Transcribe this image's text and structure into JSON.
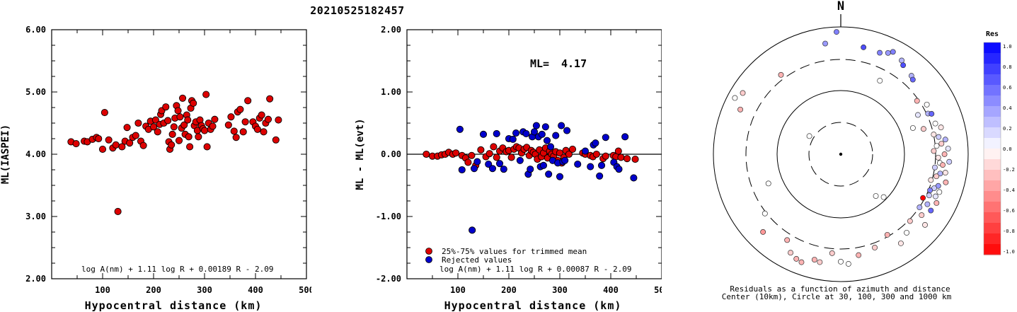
{
  "title": "20210525182457",
  "colors": {
    "red": "#dd0000",
    "blue": "#0000cc",
    "frame": "#000000"
  },
  "chart_data": [
    {
      "type": "scatter",
      "ylabel": "ML(IASPEI)",
      "xlabel": "Hypocentral distance (km)",
      "formula": "log A(nm) + 1.11 log R + 0.00189 R - 2.09",
      "xlim": [
        0,
        500
      ],
      "ylim": [
        2,
        6
      ],
      "x_ticks": [
        "100",
        "200",
        "300",
        "400",
        "500"
      ],
      "y_ticks": [
        "2.00",
        "3.00",
        "4.00",
        "5.00",
        "6.00"
      ],
      "points": [
        [
          38,
          4.2
        ],
        [
          48,
          4.17
        ],
        [
          64,
          4.21
        ],
        [
          70,
          4.2
        ],
        [
          80,
          4.24
        ],
        [
          88,
          4.27
        ],
        [
          92,
          4.25
        ],
        [
          100,
          4.08
        ],
        [
          104,
          4.67
        ],
        [
          112,
          4.23
        ],
        [
          120,
          4.1
        ],
        [
          126,
          4.15
        ],
        [
          130,
          3.08
        ],
        [
          138,
          4.12
        ],
        [
          144,
          4.21
        ],
        [
          148,
          4.43
        ],
        [
          153,
          4.18
        ],
        [
          159,
          4.27
        ],
        [
          165,
          4.3
        ],
        [
          170,
          4.5
        ],
        [
          175,
          4.21
        ],
        [
          180,
          4.14
        ],
        [
          185,
          4.45
        ],
        [
          190,
          4.4
        ],
        [
          194,
          4.53
        ],
        [
          200,
          4.44
        ],
        [
          204,
          4.55
        ],
        [
          208,
          4.36
        ],
        [
          212,
          4.48
        ],
        [
          214,
          4.64
        ],
        [
          216,
          4.7
        ],
        [
          220,
          4.5
        ],
        [
          224,
          4.76
        ],
        [
          228,
          4.54
        ],
        [
          230,
          4.2
        ],
        [
          232,
          4.08
        ],
        [
          235,
          4.15
        ],
        [
          237,
          4.32
        ],
        [
          240,
          4.44
        ],
        [
          242,
          4.58
        ],
        [
          245,
          4.78
        ],
        [
          248,
          4.7
        ],
        [
          250,
          4.22
        ],
        [
          252,
          4.6
        ],
        [
          255,
          4.42
        ],
        [
          257,
          4.9
        ],
        [
          260,
          4.47
        ],
        [
          262,
          4.32
        ],
        [
          265,
          4.63
        ],
        [
          267,
          4.55
        ],
        [
          269,
          4.28
        ],
        [
          271,
          4.12
        ],
        [
          273,
          4.74
        ],
        [
          275,
          4.86
        ],
        [
          278,
          4.82
        ],
        [
          280,
          4.46
        ],
        [
          283,
          4.52
        ],
        [
          286,
          4.38
        ],
        [
          288,
          4.28
        ],
        [
          291,
          4.55
        ],
        [
          294,
          4.46
        ],
        [
          297,
          4.41
        ],
        [
          300,
          4.38
        ],
        [
          303,
          4.96
        ],
        [
          305,
          4.12
        ],
        [
          308,
          4.5
        ],
        [
          312,
          4.4
        ],
        [
          316,
          4.45
        ],
        [
          320,
          4.56
        ],
        [
          347,
          4.47
        ],
        [
          352,
          4.6
        ],
        [
          358,
          4.37
        ],
        [
          362,
          4.27
        ],
        [
          365,
          4.68
        ],
        [
          370,
          4.72
        ],
        [
          376,
          4.36
        ],
        [
          380,
          4.52
        ],
        [
          385,
          4.86
        ],
        [
          395,
          4.52
        ],
        [
          400,
          4.45
        ],
        [
          404,
          4.4
        ],
        [
          408,
          4.58
        ],
        [
          412,
          4.63
        ],
        [
          416,
          4.36
        ],
        [
          420,
          4.5
        ],
        [
          425,
          4.56
        ],
        [
          428,
          4.89
        ],
        [
          440,
          4.23
        ],
        [
          445,
          4.55
        ]
      ]
    },
    {
      "type": "scatter",
      "ylabel": "ML - ML(evt)",
      "xlabel": "Hypocentral distance (km)",
      "ml_label": "ML=",
      "ml_value": "4.17",
      "formula": "log A(nm) + 1.11 log R + 0.00087 R - 2.09",
      "legend": [
        "25%-75% values for trimmed mean",
        "Rejected values"
      ],
      "xlim": [
        0,
        500
      ],
      "ylim": [
        -2,
        2
      ],
      "x_ticks": [
        "100",
        "200",
        "300",
        "400",
        "500"
      ],
      "y_ticks": [
        "-2.00",
        "-1.00",
        "0.00",
        "1.00",
        "2.00"
      ],
      "red_points": [
        [
          38,
          0.0
        ],
        [
          50,
          -0.03
        ],
        [
          60,
          -0.03
        ],
        [
          68,
          -0.01
        ],
        [
          75,
          0.0
        ],
        [
          82,
          0.03
        ],
        [
          90,
          0.0
        ],
        [
          96,
          0.02
        ],
        [
          108,
          -0.02
        ],
        [
          115,
          -0.06
        ],
        [
          120,
          -0.13
        ],
        [
          127,
          -0.02
        ],
        [
          135,
          -0.18
        ],
        [
          145,
          0.07
        ],
        [
          155,
          -0.04
        ],
        [
          162,
          0.01
        ],
        [
          170,
          0.12
        ],
        [
          176,
          -0.05
        ],
        [
          182,
          0.05
        ],
        [
          188,
          0.1
        ],
        [
          195,
          0.04
        ],
        [
          200,
          0.06
        ],
        [
          205,
          -0.05
        ],
        [
          210,
          0.08
        ],
        [
          215,
          0.12
        ],
        [
          220,
          0.1
        ],
        [
          225,
          0.02
        ],
        [
          230,
          0.08
        ],
        [
          235,
          0.11
        ],
        [
          240,
          -0.02
        ],
        [
          244,
          0.06
        ],
        [
          248,
          0.03
        ],
        [
          252,
          0.0
        ],
        [
          256,
          -0.08
        ],
        [
          260,
          0.07
        ],
        [
          264,
          -0.04
        ],
        [
          268,
          0.02
        ],
        [
          272,
          0.1
        ],
        [
          276,
          -0.06
        ],
        [
          280,
          0.05
        ],
        [
          284,
          0.0
        ],
        [
          288,
          -0.03
        ],
        [
          292,
          0.04
        ],
        [
          296,
          -0.1
        ],
        [
          300,
          0.02
        ],
        [
          304,
          -0.14
        ],
        [
          308,
          -0.05
        ],
        [
          312,
          0.06
        ],
        [
          318,
          0.0
        ],
        [
          325,
          0.08
        ],
        [
          345,
          0.02
        ],
        [
          350,
          0.0
        ],
        [
          360,
          -0.02
        ],
        [
          365,
          -0.04
        ],
        [
          372,
          0.0
        ],
        [
          385,
          -0.07
        ],
        [
          390,
          -0.03
        ],
        [
          405,
          -0.02
        ],
        [
          410,
          -0.04
        ],
        [
          415,
          0.05
        ],
        [
          420,
          -0.05
        ],
        [
          432,
          -0.07
        ],
        [
          448,
          -0.08
        ]
      ],
      "blue_points": [
        [
          104,
          0.4
        ],
        [
          108,
          -0.25
        ],
        [
          128,
          -1.22
        ],
        [
          132,
          -0.23
        ],
        [
          138,
          -0.12
        ],
        [
          150,
          0.32
        ],
        [
          160,
          -0.16
        ],
        [
          168,
          -0.23
        ],
        [
          176,
          0.33
        ],
        [
          182,
          -0.15
        ],
        [
          190,
          -0.24
        ],
        [
          200,
          0.25
        ],
        [
          208,
          0.24
        ],
        [
          214,
          0.34
        ],
        [
          222,
          -0.1
        ],
        [
          228,
          0.36
        ],
        [
          234,
          0.33
        ],
        [
          238,
          -0.32
        ],
        [
          242,
          -0.24
        ],
        [
          246,
          0.28
        ],
        [
          250,
          0.36
        ],
        [
          254,
          0.46
        ],
        [
          258,
          0.28
        ],
        [
          262,
          -0.2
        ],
        [
          265,
          0.32
        ],
        [
          268,
          -0.18
        ],
        [
          272,
          0.44
        ],
        [
          275,
          0.22
        ],
        [
          278,
          -0.32
        ],
        [
          282,
          0.12
        ],
        [
          286,
          -0.1
        ],
        [
          292,
          0.3
        ],
        [
          296,
          -0.14
        ],
        [
          300,
          -0.36
        ],
        [
          303,
          0.46
        ],
        [
          306,
          -0.12
        ],
        [
          310,
          -0.1
        ],
        [
          314,
          0.38
        ],
        [
          335,
          -0.16
        ],
        [
          350,
          0.05
        ],
        [
          360,
          -0.2
        ],
        [
          366,
          0.15
        ],
        [
          370,
          0.18
        ],
        [
          378,
          -0.35
        ],
        [
          382,
          -0.18
        ],
        [
          390,
          0.27
        ],
        [
          406,
          -0.13
        ],
        [
          412,
          -0.2
        ],
        [
          416,
          -0.24
        ],
        [
          428,
          0.28
        ],
        [
          445,
          -0.38
        ]
      ]
    },
    {
      "type": "polar-scatter",
      "north_label": "N",
      "caption_line1": "Residuals as a function of azimuth and distance",
      "caption_line2": "Center (10km), Circle at 30, 100, 300 and 1000 km",
      "colorbar_title": "Res",
      "colorbar_ticks": [
        "1.0",
        "0.8",
        "0.6",
        "0.4",
        "0.2",
        "0.0",
        "-0.2",
        "-0.4",
        "-0.6",
        "-0.8",
        "-1.0"
      ],
      "stations": [
        [
          12,
          1.71,
          0.7
        ],
        [
          21,
          1.7,
          0.5
        ],
        [
          25,
          1.75,
          0.4
        ],
        [
          27,
          1.8,
          0.5
        ],
        [
          33,
          1.75,
          0.3
        ],
        [
          35,
          1.7,
          0.7
        ],
        [
          42,
          1.65,
          0.3
        ],
        [
          44,
          1.62,
          0.6
        ],
        [
          28,
          1.3,
          0.0
        ],
        [
          55,
          1.45,
          -0.3
        ],
        [
          60,
          1.55,
          0.0
        ],
        [
          63,
          1.35,
          0.1
        ],
        [
          65,
          1.5,
          0.3
        ],
        [
          66,
          1.55,
          0.6
        ],
        [
          70,
          1.2,
          0.0
        ],
        [
          72,
          1.55,
          0.0
        ],
        [
          73,
          1.35,
          -0.2
        ],
        [
          75,
          1.62,
          -0.1
        ],
        [
          78,
          1.48,
          -0.1
        ],
        [
          80,
          1.55,
          0.2
        ],
        [
          82,
          1.65,
          0.3
        ],
        [
          84,
          1.58,
          -0.2
        ],
        [
          85,
          1.5,
          0.0
        ],
        [
          87,
          1.68,
          0.1
        ],
        [
          88,
          1.45,
          -0.2
        ],
        [
          90,
          1.62,
          -0.3
        ],
        [
          92,
          1.52,
          -0.1
        ],
        [
          94,
          1.7,
          0.2
        ],
        [
          95,
          1.55,
          0.0
        ],
        [
          96,
          1.6,
          -0.3
        ],
        [
          98,
          1.48,
          0.2
        ],
        [
          100,
          1.66,
          -0.1
        ],
        [
          101,
          1.58,
          0.3
        ],
        [
          103,
          1.53,
          -0.2
        ],
        [
          105,
          1.7,
          -0.3
        ],
        [
          106,
          1.46,
          -0.1
        ],
        [
          108,
          1.6,
          0.4
        ],
        [
          110,
          1.55,
          0.2
        ],
        [
          111,
          1.65,
          0.0
        ],
        [
          112,
          1.5,
          0.5
        ],
        [
          114,
          1.62,
          0.1
        ],
        [
          115,
          1.52,
          0.2
        ],
        [
          117,
          1.68,
          -0.3
        ],
        [
          118,
          1.45,
          -1.0
        ],
        [
          120,
          1.56,
          0.3
        ],
        [
          122,
          1.66,
          0.6
        ],
        [
          124,
          1.48,
          0.3
        ],
        [
          127,
          1.58,
          -0.2
        ],
        [
          130,
          1.72,
          -0.1
        ],
        [
          134,
          1.5,
          -0.2
        ],
        [
          135,
          0.95,
          0.0
        ],
        [
          140,
          0.85,
          0.0
        ],
        [
          140,
          1.6,
          0.0
        ],
        [
          146,
          1.68,
          -0.1
        ],
        [
          150,
          1.45,
          -0.3
        ],
        [
          160,
          1.55,
          -0.2
        ],
        [
          170,
          1.6,
          -0.3
        ],
        [
          176,
          1.72,
          0.0
        ],
        [
          180,
          1.68,
          0.0
        ],
        [
          185,
          1.55,
          -0.2
        ],
        [
          191,
          1.72,
          -0.2
        ],
        [
          194,
          1.7,
          -0.3
        ],
        [
          200,
          1.8,
          -0.3
        ],
        [
          203,
          1.78,
          -0.3
        ],
        [
          207,
          1.73,
          -0.2
        ],
        [
          212,
          1.58,
          -0.3
        ],
        [
          225,
          1.72,
          -0.4
        ],
        [
          232,
          1.5,
          0.0
        ],
        [
          248,
          1.22,
          0.0
        ],
        [
          294,
          1.72,
          -0.3
        ],
        [
          298,
          1.88,
          0.0
        ],
        [
          300,
          0.55,
          0.0
        ],
        [
          302,
          1.81,
          -0.2
        ],
        [
          323,
          1.55,
          -0.3
        ],
        [
          352,
          1.75,
          0.4
        ],
        [
          358,
          1.92,
          0.5
        ]
      ]
    }
  ]
}
